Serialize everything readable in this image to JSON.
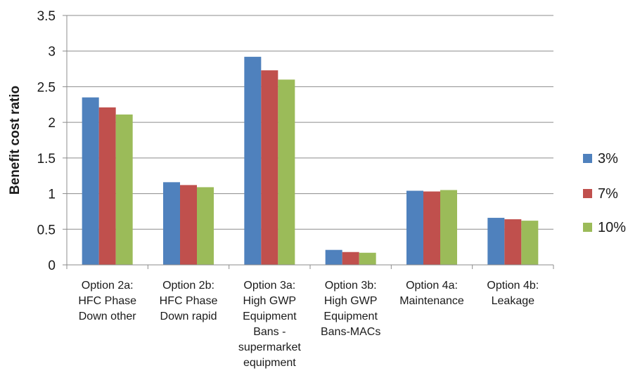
{
  "chart_data": {
    "type": "bar",
    "title": "",
    "xlabel": "",
    "ylabel": "Benefit cost ratio",
    "ylim": [
      0,
      3.5
    ],
    "yticks": [
      "0",
      "0.5",
      "1",
      "1.5",
      "2",
      "2.5",
      "3",
      "3.5"
    ],
    "grid": true,
    "legend_position": "right",
    "categories": [
      [
        "Option 2a:",
        "HFC Phase",
        "Down other"
      ],
      [
        "Option 2b:",
        "HFC Phase",
        "Down rapid"
      ],
      [
        "Option 3a:",
        "High GWP",
        "Equipment",
        "Bans -",
        "supermarket",
        "equipment"
      ],
      [
        "Option 3b:",
        "High GWP",
        "Equipment",
        "Bans-MACs"
      ],
      [
        "Option 4a:",
        "Maintenance"
      ],
      [
        "Option 4b:",
        "Leakage"
      ]
    ],
    "series": [
      {
        "name": "3%",
        "color": "#4f81bd",
        "values": [
          2.35,
          1.16,
          2.92,
          0.21,
          1.04,
          0.66
        ]
      },
      {
        "name": "7%",
        "color": "#c0504d",
        "values": [
          2.21,
          1.12,
          2.73,
          0.18,
          1.03,
          0.64
        ]
      },
      {
        "name": "10%",
        "color": "#9bbb59",
        "values": [
          2.11,
          1.09,
          2.6,
          0.17,
          1.05,
          0.62
        ]
      }
    ]
  }
}
